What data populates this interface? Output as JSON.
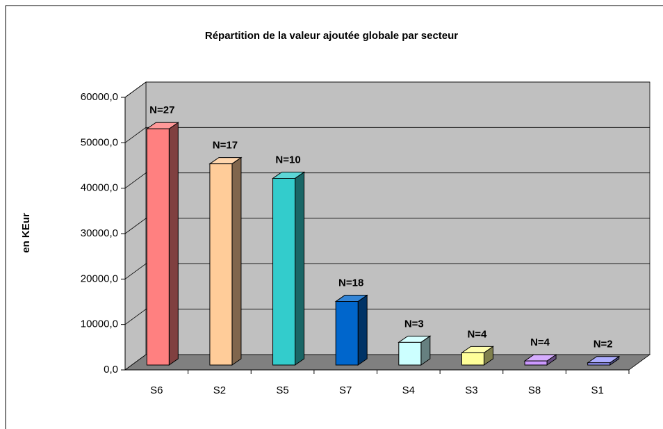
{
  "chart_data": {
    "type": "bar3d",
    "title": "Répartition de la valeur ajoutée globale par secteur",
    "y_label": "en KEur",
    "categories": [
      "S6",
      "S2",
      "S5",
      "S7",
      "S4",
      "S3",
      "S8",
      "S1"
    ],
    "values": [
      52000,
      44300,
      41100,
      14000,
      5000,
      2700,
      900,
      500
    ],
    "annotations": [
      "N=27",
      "N=17",
      "N=10",
      "N=18",
      "N=3",
      "N=4",
      "N=4",
      "N=2"
    ],
    "colors": [
      "#ff8080",
      "#ffcc99",
      "#33cccc",
      "#0066cc",
      "#ccffff",
      "#ffff99",
      "#cc99ff",
      "#9999ff"
    ],
    "ylim": [
      0,
      60000
    ],
    "yticks": [
      {
        "value": 0,
        "label": "0,0"
      },
      {
        "value": 10000,
        "label": "10000,0"
      },
      {
        "value": 20000,
        "label": "20000,0"
      },
      {
        "value": 30000,
        "label": "30000,0"
      },
      {
        "value": 40000,
        "label": "40000,0"
      },
      {
        "value": 50000,
        "label": "50000,0"
      },
      {
        "value": 60000,
        "label": "60000,0"
      }
    ],
    "grid": true
  }
}
